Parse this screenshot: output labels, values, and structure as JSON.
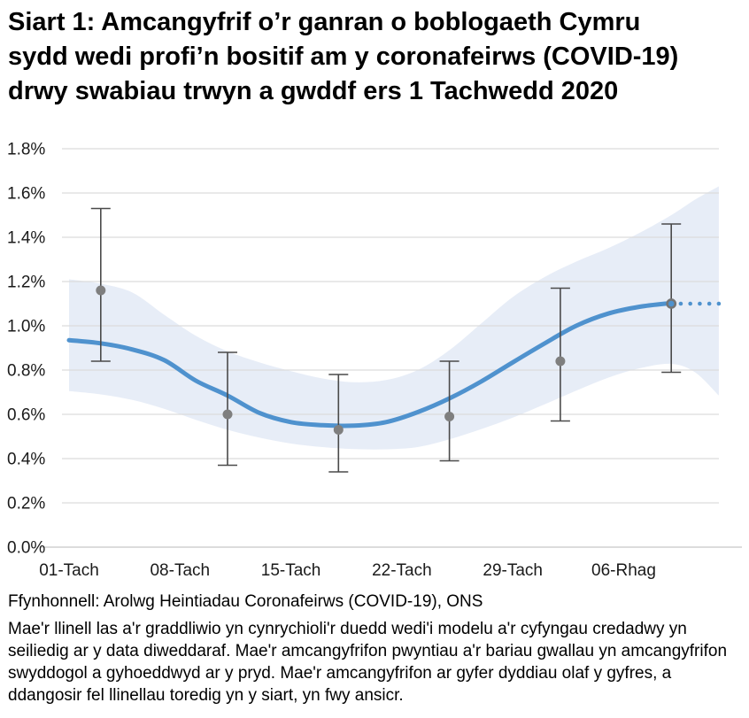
{
  "title": {
    "lines": [
      "Siart 1: Amcangyfrif o’r ganran o boblogaeth Cymru",
      "sydd wedi profi’n bositif am y coronafeirws (COVID-19)",
      "drwy swabiau trwyn a gwddf ers 1 Tachwedd 2020"
    ]
  },
  "source": "Ffynhonnell: Arolwg Heintiadau Coronafeirws (COVID-19), ONS",
  "note": "Mae'r llinell las a'r graddliwio yn cynrychioli'r duedd wedi'i modelu a'r cyfyngau credadwy yn seiliedig ar y data diweddaraf. Mae'r amcangyfrifon pwyntiau a'r bariau gwallau yn amcangyfrifon swyddogol a gyhoeddwyd ar y pryd. Mae'r amcangyfrifon ar gyfer dyddiau olaf y gyfres, a ddangosir fel llinellau toredig yn y siart, yn fwy ansicr.",
  "colors": {
    "trend_line": "#4f92ce",
    "credible_band": "#e7edf7",
    "estimate_point": "#7f7f7f",
    "error_bar": "#4a4a4a",
    "gridline": "#dcdcdc",
    "axis_line": "#d0d0d0",
    "tick_text": "#1a1a1a"
  },
  "chart_data": {
    "type": "line",
    "x_axis": {
      "tick_labels": [
        "01-Tach",
        "08-Tach",
        "15-Tach",
        "22-Tach",
        "29-Tach",
        "06-Rhag"
      ],
      "tick_days": [
        0,
        7,
        14,
        21,
        28,
        35
      ],
      "range_days": [
        0,
        41
      ]
    },
    "y_axis": {
      "unit": "%",
      "tick_labels": [
        "0.0%",
        "0.2%",
        "0.4%",
        "0.6%",
        "0.8%",
        "1.0%",
        "1.2%",
        "1.4%",
        "1.6%",
        "1.8%"
      ],
      "tick_values": [
        0,
        0.2,
        0.4,
        0.6,
        0.8,
        1.0,
        1.2,
        1.4,
        1.6,
        1.8
      ],
      "range": [
        0,
        1.8
      ]
    },
    "modelled_trend": {
      "points_day_pct": [
        [
          0,
          0.935
        ],
        [
          2,
          0.921
        ],
        [
          4,
          0.893
        ],
        [
          6,
          0.845
        ],
        [
          8,
          0.752
        ],
        [
          10,
          0.685
        ],
        [
          12,
          0.607
        ],
        [
          14,
          0.565
        ],
        [
          16,
          0.551
        ],
        [
          18,
          0.549
        ],
        [
          20,
          0.565
        ],
        [
          22,
          0.61
        ],
        [
          24,
          0.672
        ],
        [
          26,
          0.748
        ],
        [
          28,
          0.835
        ],
        [
          30,
          0.92
        ],
        [
          32,
          1.0
        ],
        [
          34,
          1.055
        ],
        [
          36,
          1.086
        ],
        [
          38,
          1.103
        ]
      ]
    },
    "dotted_trend": {
      "dot_days": [
        38.6,
        39.2,
        39.8,
        40.4,
        41
      ],
      "value_pct": 1.1
    },
    "credible_band": {
      "points_day_lo_hi": [
        [
          0,
          0.705,
          1.21
        ],
        [
          2,
          0.69,
          1.19
        ],
        [
          4,
          0.665,
          1.15
        ],
        [
          6,
          0.625,
          1.05
        ],
        [
          8,
          0.575,
          0.955
        ],
        [
          10,
          0.53,
          0.885
        ],
        [
          12,
          0.495,
          0.835
        ],
        [
          14,
          0.468,
          0.795
        ],
        [
          16,
          0.452,
          0.762
        ],
        [
          18,
          0.443,
          0.745
        ],
        [
          20,
          0.442,
          0.755
        ],
        [
          22,
          0.452,
          0.8
        ],
        [
          24,
          0.487,
          0.89
        ],
        [
          26,
          0.533,
          1.01
        ],
        [
          28,
          0.585,
          1.13
        ],
        [
          30,
          0.645,
          1.22
        ],
        [
          32,
          0.707,
          1.29
        ],
        [
          34,
          0.765,
          1.35
        ],
        [
          36,
          0.808,
          1.42
        ],
        [
          38,
          0.828,
          1.5
        ],
        [
          39.5,
          0.79,
          1.57
        ],
        [
          41,
          0.685,
          1.63
        ]
      ]
    },
    "official_estimates": [
      {
        "day": 2,
        "value_pct": 1.16,
        "lower_pct": 0.84,
        "upper_pct": 1.53,
        "final": false
      },
      {
        "day": 10,
        "value_pct": 0.6,
        "lower_pct": 0.37,
        "upper_pct": 0.88,
        "final": false
      },
      {
        "day": 17,
        "value_pct": 0.53,
        "lower_pct": 0.34,
        "upper_pct": 0.78,
        "final": false
      },
      {
        "day": 24,
        "value_pct": 0.59,
        "lower_pct": 0.39,
        "upper_pct": 0.84,
        "final": false
      },
      {
        "day": 31,
        "value_pct": 0.84,
        "lower_pct": 0.57,
        "upper_pct": 1.17,
        "final": false
      },
      {
        "day": 38,
        "value_pct": 1.1,
        "lower_pct": 0.79,
        "upper_pct": 1.46,
        "final": true
      }
    ]
  }
}
